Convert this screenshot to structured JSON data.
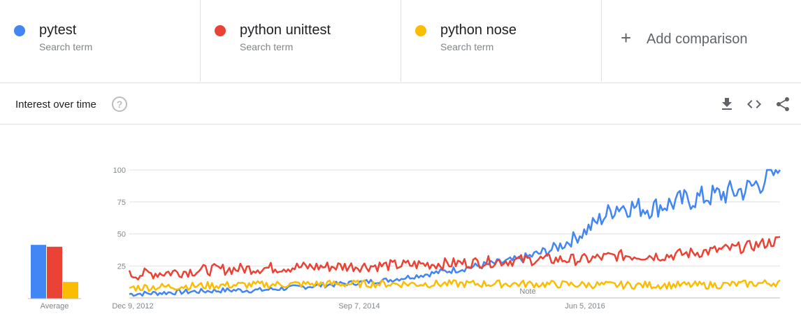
{
  "terms": [
    {
      "name": "pytest",
      "sub": "Search term",
      "color": "#4285f4"
    },
    {
      "name": "python unittest",
      "sub": "Search term",
      "color": "#ea4335"
    },
    {
      "name": "python nose",
      "sub": "Search term",
      "color": "#fbbc04"
    }
  ],
  "add_comparison": {
    "label": "Add comparison",
    "icon": "plus-icon"
  },
  "card": {
    "title": "Interest over time",
    "help": "?",
    "tools": [
      "download-icon",
      "embed-icon",
      "share-icon"
    ]
  },
  "average": {
    "label": "Average",
    "values": [
      29,
      28,
      9
    ]
  },
  "chart_data": {
    "type": "line",
    "title": "",
    "xlabel": "",
    "ylabel": "",
    "ylim": [
      0,
      100
    ],
    "yticks": [
      "100",
      "75",
      "50",
      "25"
    ],
    "xticks": [
      "Dec 9, 2012",
      "Sep 7, 2014",
      "Jun 5, 2016"
    ],
    "note_label": "Note",
    "n_points": 300,
    "series": [
      {
        "name": "pytest",
        "color": "#4285f4",
        "keypoints": [
          [
            0,
            3
          ],
          [
            20,
            4
          ],
          [
            40,
            5
          ],
          [
            60,
            6
          ],
          [
            80,
            6
          ],
          [
            100,
            8
          ],
          [
            120,
            10
          ],
          [
            140,
            12
          ],
          [
            160,
            14
          ],
          [
            180,
            18
          ],
          [
            200,
            22
          ],
          [
            220,
            26
          ],
          [
            240,
            30
          ],
          [
            260,
            38
          ],
          [
            270,
            44
          ],
          [
            280,
            52
          ],
          [
            290,
            62
          ],
          [
            300,
            72
          ],
          [
            320,
            70
          ],
          [
            340,
            76
          ],
          [
            360,
            80
          ],
          [
            380,
            85
          ],
          [
            400,
            100
          ]
        ]
      },
      {
        "name": "python unittest",
        "color": "#ea4335",
        "keypoints": [
          [
            0,
            18
          ],
          [
            50,
            22
          ],
          [
            100,
            24
          ],
          [
            150,
            25
          ],
          [
            200,
            27
          ],
          [
            250,
            30
          ],
          [
            280,
            30
          ],
          [
            300,
            33
          ],
          [
            330,
            33
          ],
          [
            360,
            37
          ],
          [
            380,
            40
          ],
          [
            400,
            45
          ]
        ]
      },
      {
        "name": "python nose",
        "color": "#fbbc04",
        "keypoints": [
          [
            0,
            8
          ],
          [
            60,
            10
          ],
          [
            120,
            11
          ],
          [
            180,
            11
          ],
          [
            240,
            11
          ],
          [
            300,
            10
          ],
          [
            360,
            10
          ],
          [
            400,
            12
          ]
        ]
      }
    ]
  }
}
